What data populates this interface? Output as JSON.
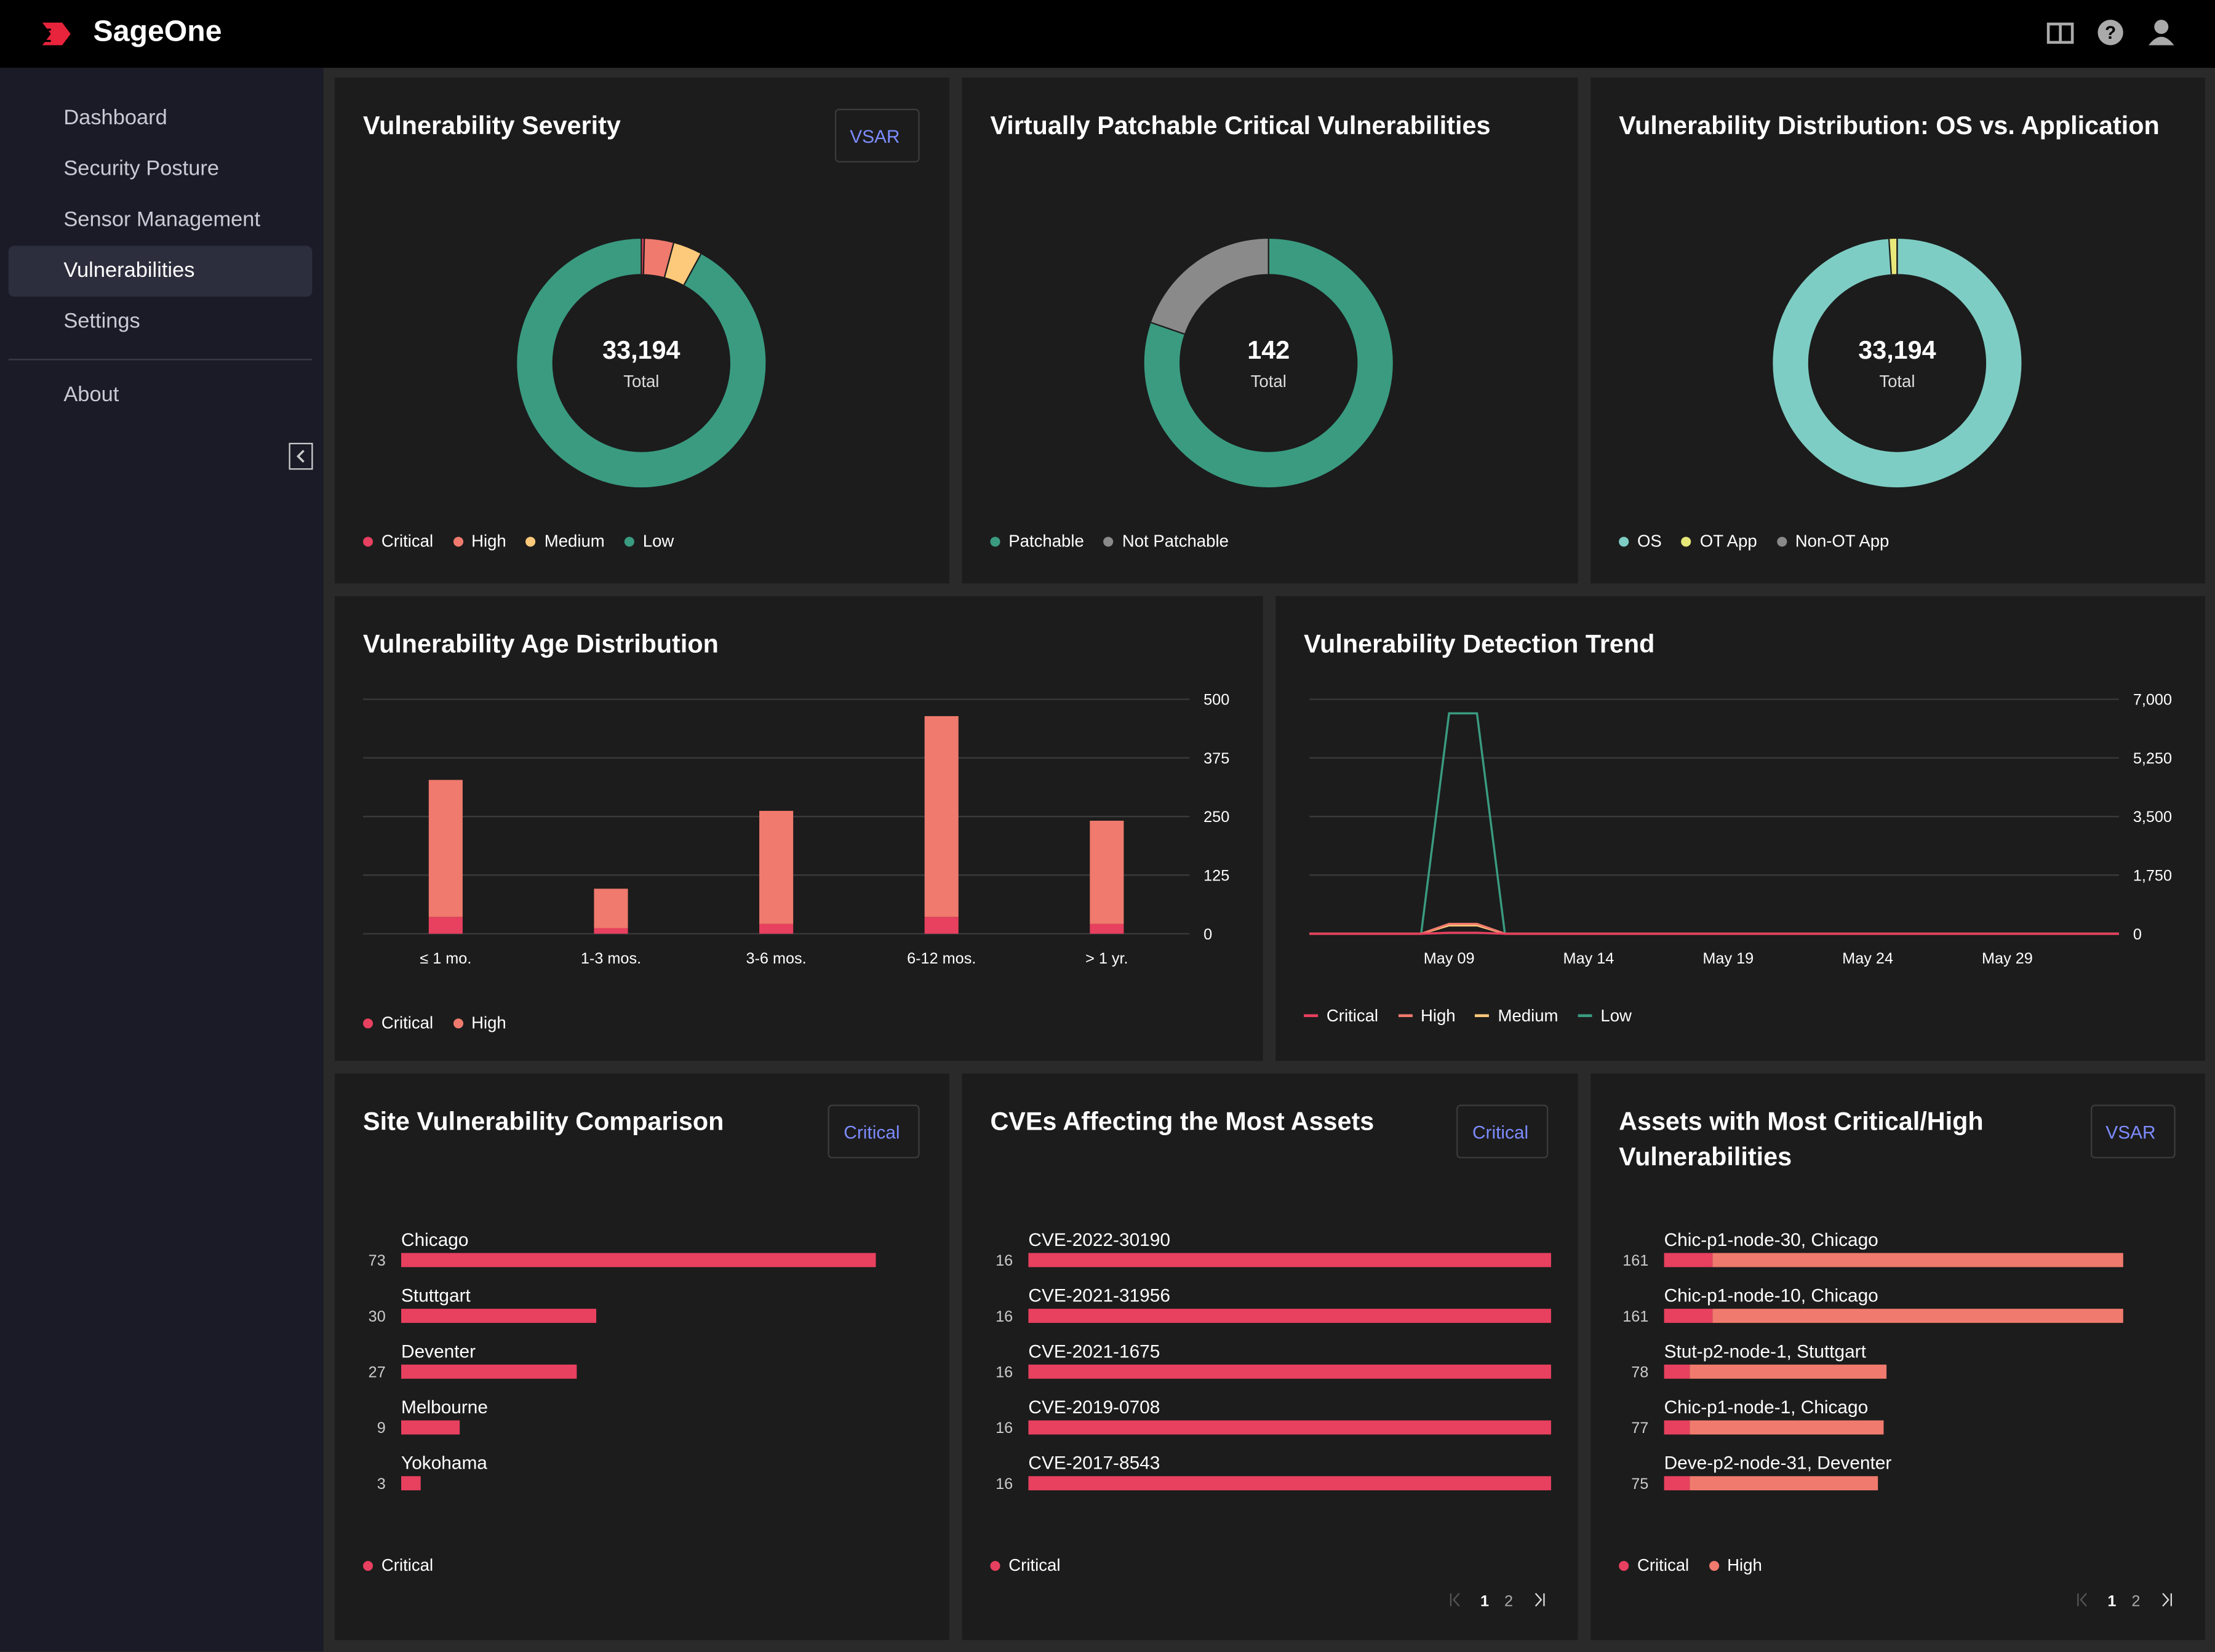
{
  "header": {
    "brand": "SageOne"
  },
  "sidebar": {
    "items": [
      "Dashboard",
      "Security Posture",
      "Sensor Management",
      "Vulnerabilities",
      "Settings"
    ],
    "about": "About"
  },
  "chart_data": [
    {
      "type": "donut",
      "title": "Vulnerability Severity",
      "selector": "VSAR",
      "center_label": "33,194",
      "center_caption": "Total",
      "categories": [
        "Critical",
        "High",
        "Medium",
        "Low"
      ],
      "values": [
        126,
        1265,
        1250,
        30553
      ],
      "colors": [
        "#e8405f",
        "#f07a6d",
        "#fdc97a",
        "#3a9b80"
      ]
    },
    {
      "type": "donut",
      "title": "Virtually Patchable Critical Vulnerabilities",
      "center_label": "142",
      "center_caption": "Total",
      "categories": [
        "Patchable",
        "Not Patchable"
      ],
      "values": [
        114,
        28
      ],
      "colors": [
        "#3a9b80",
        "#8a8a8a"
      ]
    },
    {
      "type": "donut",
      "title": "Vulnerability Distribution: OS vs. Application",
      "center_label": "33,194",
      "center_caption": "Total",
      "categories": [
        "OS",
        "OT App",
        "Non-OT App"
      ],
      "values": [
        32844,
        350,
        0
      ],
      "colors": [
        "#7ecdc4",
        "#e8e87a",
        "#8a8a8a"
      ]
    },
    {
      "type": "stacked_bar",
      "title": "Vulnerability Age Distribution",
      "categories": [
        "≤ 1 mo.",
        "1-3 mos.",
        "3-6 mos.",
        "6-12 mos.",
        "> 1 yr."
      ],
      "series": [
        {
          "name": "Critical",
          "color": "#e8405f",
          "values": [
            36,
            12,
            21,
            36,
            21
          ]
        },
        {
          "name": "High",
          "color": "#f07a6d",
          "values": [
            292,
            84,
            241,
            428,
            220
          ]
        }
      ],
      "ylim": [
        0,
        500
      ],
      "yticks": [
        0,
        125,
        250,
        375,
        500
      ],
      "grid": true
    },
    {
      "type": "line",
      "title": "Vulnerability Detection Trend",
      "categories": [
        null,
        null,
        null,
        null,
        null,
        "May 09",
        null,
        null,
        null,
        null,
        "May 14",
        null,
        null,
        null,
        null,
        "May 19",
        null,
        null,
        null,
        null,
        "May 24",
        null,
        null,
        null,
        null,
        "May 29",
        null,
        null,
        null,
        null
      ],
      "series": [
        {
          "name": "Critical",
          "color": "#e8405f",
          "values": [
            0,
            0,
            0,
            0,
            0,
            30,
            30,
            0,
            0,
            0,
            0,
            0,
            0,
            0,
            0,
            0,
            0,
            0,
            0,
            0,
            0,
            0,
            0,
            0,
            0,
            0,
            0,
            0,
            0,
            0
          ]
        },
        {
          "name": "High",
          "color": "#f07a6d",
          "values": [
            0,
            0,
            0,
            0,
            0,
            295,
            295,
            0,
            0,
            0,
            0,
            0,
            0,
            0,
            0,
            0,
            0,
            0,
            0,
            0,
            0,
            0,
            0,
            0,
            0,
            0,
            0,
            0,
            0,
            0
          ]
        },
        {
          "name": "Medium",
          "color": "#fdc97a",
          "values": [
            0,
            0,
            0,
            0,
            0,
            250,
            250,
            0,
            0,
            0,
            0,
            0,
            0,
            0,
            0,
            0,
            0,
            0,
            0,
            0,
            0,
            0,
            0,
            0,
            0,
            0,
            0,
            0,
            0,
            0
          ]
        },
        {
          "name": "Low",
          "color": "#3a9b80",
          "values": [
            0,
            0,
            0,
            0,
            0,
            6580,
            6580,
            0,
            0,
            0,
            0,
            0,
            0,
            0,
            0,
            0,
            0,
            0,
            0,
            0,
            0,
            0,
            0,
            0,
            0,
            0,
            0,
            0,
            0,
            0
          ]
        }
      ],
      "ylim": [
        0,
        7000
      ],
      "yticks": [
        0,
        {
          "value": 1750,
          "label": "1,750"
        },
        {
          "value": 3500,
          "label": "3,500"
        },
        {
          "value": 5250,
          "label": "5,250"
        },
        {
          "value": 7000,
          "label": "7,000"
        }
      ],
      "grid": true
    },
    {
      "type": "hbar",
      "title": "Site Vulnerability Comparison",
      "selector": "Critical",
      "categories": [
        "Chicago",
        "Stuttgart",
        "Deventer",
        "Melbourne",
        "Yokohama"
      ],
      "series": [
        {
          "name": "Critical",
          "color": "#e8405f",
          "values": [
            73,
            30,
            27,
            9,
            3
          ]
        }
      ]
    },
    {
      "type": "hbar",
      "title": "CVEs Affecting the Most Assets",
      "selector": "Critical",
      "categories": [
        "CVE-2022-30190",
        "CVE-2021-31956",
        "CVE-2021-1675",
        "CVE-2019-0708",
        "CVE-2017-8543"
      ],
      "series": [
        {
          "name": "Critical",
          "color": "#e8405f",
          "values": [
            16,
            16,
            16,
            16,
            16
          ]
        }
      ],
      "pages": [
        "1",
        "2"
      ]
    },
    {
      "type": "hbar",
      "title": "Assets with Most Critical/High Vulnerabilities",
      "selector": "VSAR",
      "categories": [
        "Chic-p1-node-30, Chicago",
        "Chic-p1-node-10, Chicago",
        "Stut-p2-node-1, Stuttgart",
        "Chic-p1-node-1, Chicago",
        "Deve-p2-node-31, Deventer"
      ],
      "series": [
        {
          "name": "Critical",
          "color": "#e8405f",
          "values": [
            17,
            17,
            9,
            9,
            9
          ]
        },
        {
          "name": "High",
          "color": "#f07a6d",
          "values": [
            144,
            144,
            69,
            68,
            66
          ]
        }
      ],
      "totals": [
        161,
        161,
        78,
        77,
        75
      ],
      "pages": [
        "1",
        "2"
      ]
    }
  ]
}
